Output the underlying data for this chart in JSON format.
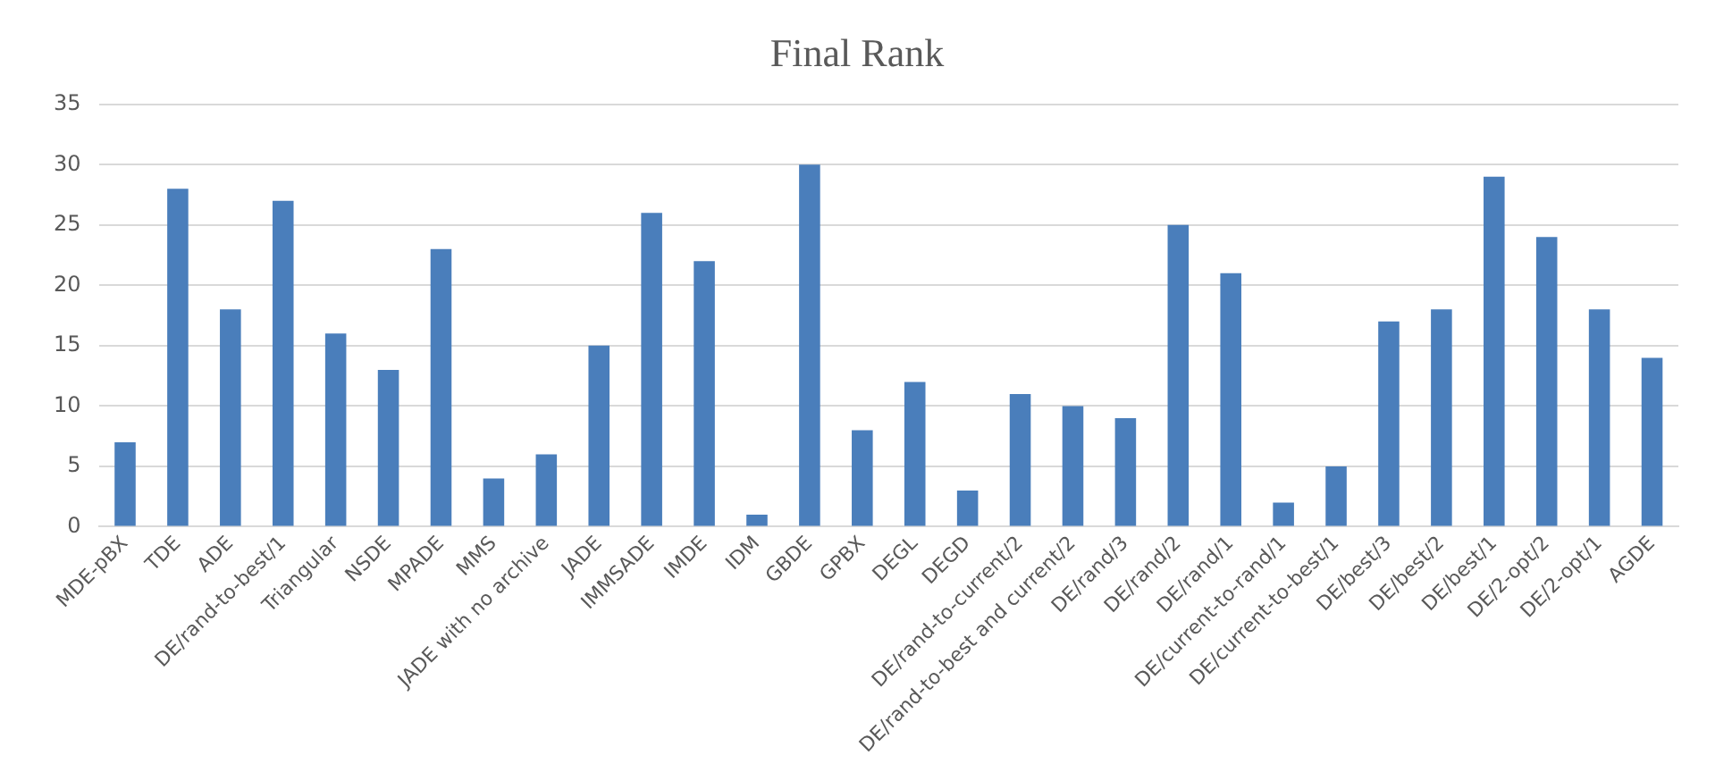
{
  "chart_data": {
    "type": "bar",
    "title": "Final Rank",
    "categories": [
      "MDE-pBX",
      "TDE",
      "ADE",
      "DE/rand-to-best/1",
      "Triangular",
      "NSDE",
      "MPADE",
      "MMS",
      "JADE with no archive",
      "JADE",
      "IMMSADE",
      "IMDE",
      "IDM",
      "GBDE",
      "GPBX",
      "DEGL",
      "DEGD",
      "DE/rand-to-current/2",
      "DE/rand-to-best and current/2",
      "DE/rand/3",
      "DE/rand/2",
      "DE/rand/1",
      "DE/current-to-rand/1",
      "DE/current-to-best/1",
      "DE/best/3",
      "DE/best/2",
      "DE/best/1",
      "DE/2-opt/2",
      "DE/2-opt/1",
      "AGDE"
    ],
    "values": [
      7,
      28,
      18,
      27,
      16,
      13,
      23,
      4,
      6,
      15,
      26,
      22,
      1,
      30,
      8,
      12,
      3,
      11,
      10,
      9,
      25,
      21,
      2,
      5,
      17,
      18,
      29,
      24,
      18,
      14
    ],
    "color": "#4a7ebb",
    "ylim": [
      0,
      35
    ],
    "yticks": [
      0,
      5,
      10,
      15,
      20,
      25,
      30,
      35
    ],
    "grid": "y",
    "legend": false
  }
}
